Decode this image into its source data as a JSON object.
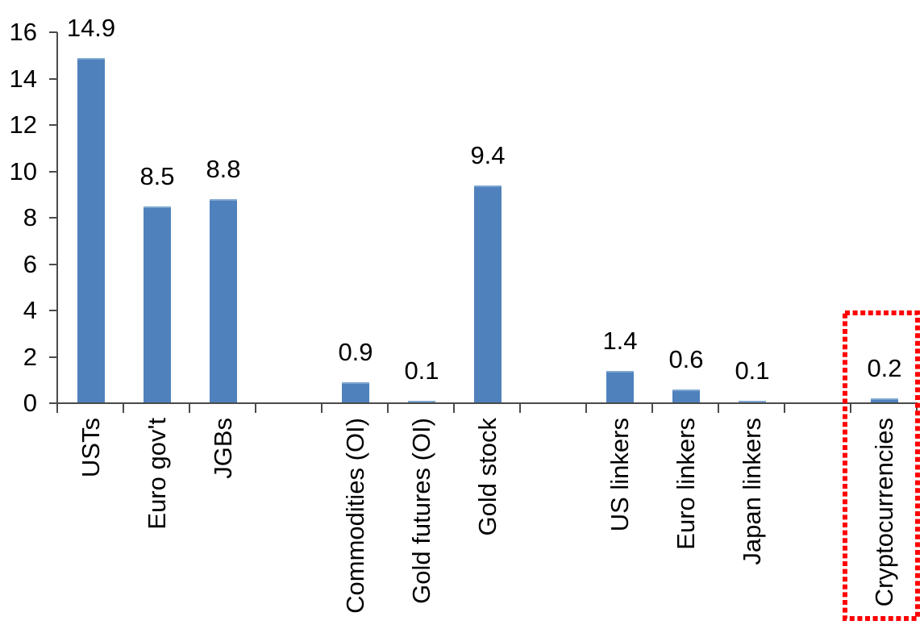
{
  "chart_data": {
    "type": "bar",
    "title": "",
    "xlabel": "",
    "ylabel": "",
    "categories": [
      "USTs",
      "Euro gov't",
      "JGBs",
      "",
      "Commodities (OI)",
      "Gold futures (OI)",
      "Gold stock",
      "",
      "US linkers",
      "Euro linkers",
      "Japan linkers",
      "",
      "Cryptocurrencies"
    ],
    "values": [
      14.9,
      8.5,
      8.8,
      null,
      0.9,
      0.1,
      9.4,
      null,
      1.4,
      0.6,
      0.1,
      null,
      0.2
    ],
    "data_labels": [
      "14.9",
      "8.5",
      "8.8",
      null,
      "0.9",
      "0.1",
      "9.4",
      null,
      "1.4",
      "0.6",
      "0.1",
      null,
      "0.2"
    ],
    "ylim": [
      0,
      16
    ],
    "y_ticks": [
      0,
      2,
      4,
      6,
      8,
      10,
      12,
      14,
      16
    ],
    "grid": false,
    "legend": false,
    "bar_color": "#4F81BD",
    "bar_top_edge_color": "#7EA6D0",
    "axis_color": "#4A4A4A",
    "text_color": "#000000",
    "highlight_box": {
      "category": "Cryptocurrencies",
      "style": "dotted",
      "color": "#FF0000"
    }
  }
}
